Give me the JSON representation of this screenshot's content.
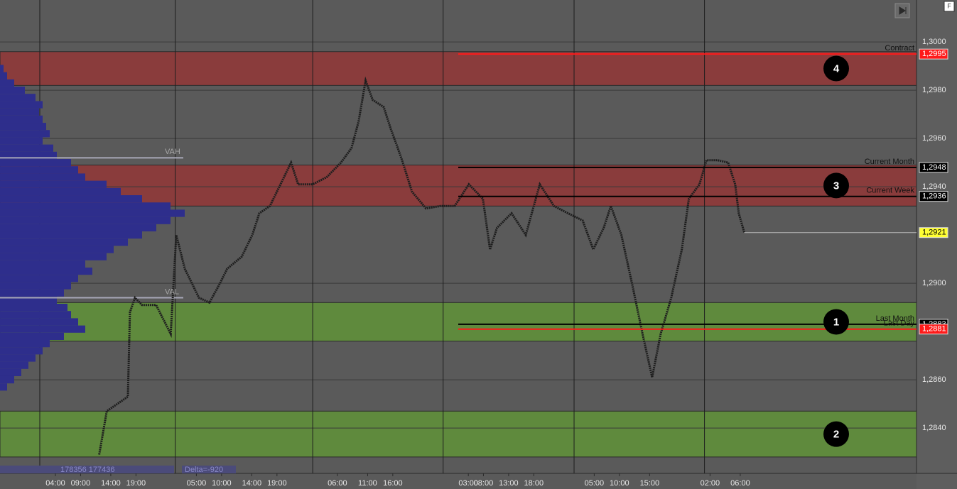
{
  "chart_data": {
    "type": "line",
    "ylim": [
      1.28212,
      1.30174
    ],
    "xlim": [
      0,
      182
    ],
    "yticks": [
      {
        "value": 1.3,
        "label": "1,3000"
      },
      {
        "value": 1.298,
        "label": "1,2980"
      },
      {
        "value": 1.296,
        "label": "1,2960"
      },
      {
        "value": 1.294,
        "label": "1,2940"
      },
      {
        "value": 1.29,
        "label": "1,2900"
      },
      {
        "value": 1.286,
        "label": "1,2860"
      },
      {
        "value": 1.284,
        "label": "1,2840"
      }
    ],
    "xticks": [
      {
        "value": 11,
        "label": "04:00"
      },
      {
        "value": 16,
        "label": "09:00"
      },
      {
        "value": 22,
        "label": "14:00"
      },
      {
        "value": 27,
        "label": "19:00"
      },
      {
        "value": 39,
        "label": "05:00"
      },
      {
        "value": 44,
        "label": "10:00"
      },
      {
        "value": 50,
        "label": "14:00"
      },
      {
        "value": 55,
        "label": "19:00"
      },
      {
        "value": 67,
        "label": "06:00"
      },
      {
        "value": 73,
        "label": "11:00"
      },
      {
        "value": 78,
        "label": "16:00"
      },
      {
        "value": 93,
        "label": "03:00"
      },
      {
        "value": 96,
        "label": "08:00"
      },
      {
        "value": 101,
        "label": "13:00"
      },
      {
        "value": 106,
        "label": "18:00"
      },
      {
        "value": 118,
        "label": "05:00"
      },
      {
        "value": 123,
        "label": "10:00"
      },
      {
        "value": 129,
        "label": "15:00"
      },
      {
        "value": 141,
        "label": "02:00"
      },
      {
        "value": 147,
        "label": "06:00"
      }
    ],
    "session_lines": [
      7.9,
      34.8,
      62.1,
      88.0,
      114.0,
      139.9
    ],
    "color": "#1e1e1e",
    "x": [
      19.7,
      21.2,
      25.4,
      25.8,
      26.8,
      28.2,
      31.0,
      33.9,
      35.0,
      36.7,
      39.5,
      41.6,
      43.7,
      45.1,
      48.0,
      50.1,
      51.5,
      53.6,
      55.7,
      57.8,
      59.2,
      62.1,
      64.9,
      67.7,
      69.8,
      71.2,
      72.6,
      74.0,
      76.2,
      77.6,
      79.0,
      80.0,
      81.8,
      84.6,
      87.4,
      90.3,
      93.1,
      95.9,
      97.3,
      98.7,
      101.6,
      104.4,
      107.2,
      110.0,
      112.8,
      115.7,
      117.8,
      119.9,
      121.3,
      123.4,
      125.5,
      127.6,
      129.5,
      131.2,
      133.3,
      135.4,
      136.8,
      138.9,
      140.3,
      142.5,
      144.6,
      146.0,
      146.7,
      147.8
    ],
    "values": [
      1.2829,
      1.2847,
      1.2853,
      1.2888,
      1.2894,
      1.2891,
      1.2891,
      1.2879,
      1.292,
      1.2906,
      1.2894,
      1.2892,
      1.29,
      1.2906,
      1.2911,
      1.292,
      1.2929,
      1.2932,
      1.2941,
      1.295,
      1.2941,
      1.2941,
      1.2944,
      1.295,
      1.2956,
      1.2967,
      1.2984,
      1.2976,
      1.2973,
      1.2964,
      1.2956,
      1.295,
      1.2938,
      1.2931,
      1.2932,
      1.2932,
      1.2941,
      1.2935,
      1.2914,
      1.2923,
      1.2929,
      1.292,
      1.2941,
      1.2932,
      1.2929,
      1.2926,
      1.2914,
      1.2923,
      1.2932,
      1.292,
      1.29,
      1.2879,
      1.2861,
      1.2879,
      1.2894,
      1.2914,
      1.2935,
      1.2941,
      1.2951,
      1.2951,
      1.295,
      1.2941,
      1.2929,
      1.2921
    ],
    "zones": [
      {
        "label": "4",
        "range": [
          1.2982,
          1.2996
        ],
        "color": "#8a3c3c"
      },
      {
        "label": "3",
        "range": [
          1.2932,
          1.2949
        ],
        "color": "#8a3c3c"
      },
      {
        "label": "1",
        "range": [
          1.2876,
          1.2892
        ],
        "color": "#5f8a3d"
      },
      {
        "label": "2",
        "range": [
          1.2828,
          1.2847
        ],
        "color": "#5f8a3d"
      }
    ],
    "levels": [
      {
        "name": "Contract",
        "value": 1.2995,
        "label": "1,2995",
        "color": "#ff1a1a"
      },
      {
        "name": "Current Month",
        "value": 1.2948,
        "label": "1,2948",
        "color": "#000000"
      },
      {
        "name": "Current Week",
        "value": 1.2936,
        "label": "1,2936",
        "color": "#000000"
      },
      {
        "name": "Last Month",
        "value": 1.2883,
        "label": "1,2883",
        "color": "#000000"
      },
      {
        "name": "Last Day",
        "value": 1.2881,
        "label": "1,2881",
        "color": "#ff1a1a"
      }
    ],
    "last_price": {
      "value": 1.2921,
      "label": "1,2921",
      "color": "#ffff33"
    },
    "profile": {
      "color": "#2e2e8c",
      "prices": [
        1.2989,
        1.2986,
        1.2983,
        1.298,
        1.2977,
        1.2974,
        1.2971,
        1.2968,
        1.2965,
        1.2962,
        1.2959,
        1.2956,
        1.2953,
        1.295,
        1.2947,
        1.2944,
        1.2941,
        1.2938,
        1.2935,
        1.2932,
        1.2929,
        1.2926,
        1.2923,
        1.292,
        1.2917,
        1.2914,
        1.2911,
        1.2908,
        1.2905,
        1.2902,
        1.2899,
        1.2896,
        1.2893,
        1.289,
        1.2887,
        1.2884,
        1.2881,
        1.2878,
        1.2875,
        1.2872,
        1.2869,
        1.2866,
        1.2863,
        1.286,
        1.2857
      ],
      "values": [
        5,
        10,
        20,
        35,
        50,
        60,
        55,
        60,
        65,
        70,
        60,
        75,
        80,
        100,
        110,
        120,
        150,
        170,
        200,
        240,
        260,
        240,
        220,
        200,
        180,
        160,
        150,
        120,
        130,
        110,
        100,
        90,
        80,
        95,
        100,
        110,
        120,
        90,
        70,
        60,
        50,
        40,
        30,
        20,
        10
      ],
      "vah": {
        "label": "VAH",
        "value": 1.2952
      },
      "val": {
        "label": "VAL",
        "value": 1.2894
      }
    },
    "footer_volume": "178356 177436",
    "footer_delta": "Delta=-920",
    "corner_button": "F"
  }
}
